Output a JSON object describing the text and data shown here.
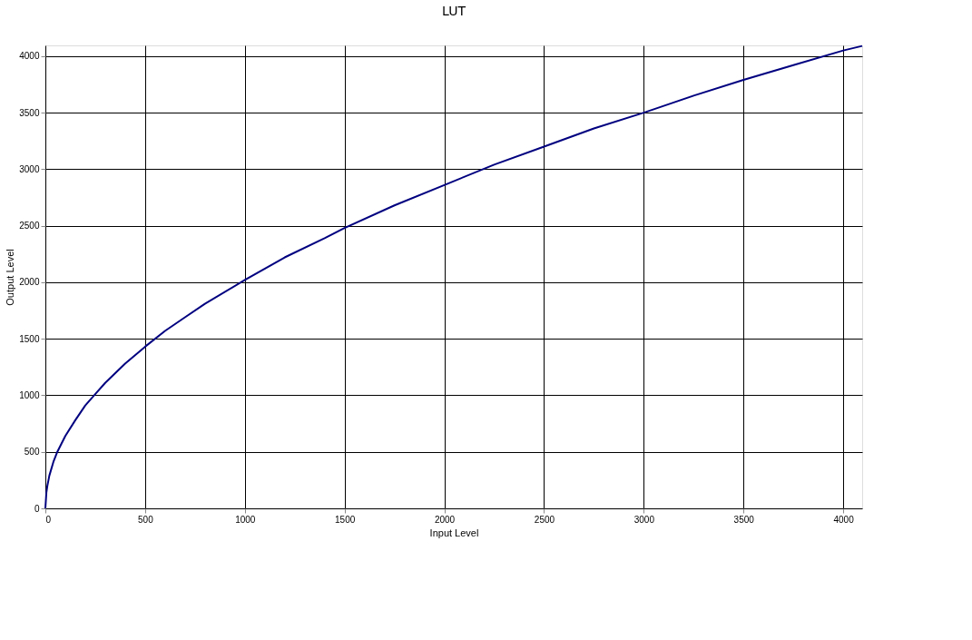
{
  "chart_data": {
    "type": "line",
    "title": "LUT",
    "xlabel": "Input Level",
    "ylabel": "Output Level",
    "x": [
      0,
      5,
      10,
      20,
      40,
      60,
      80,
      100,
      150,
      200,
      250,
      300,
      400,
      500,
      600,
      700,
      800,
      1000,
      1200,
      1400,
      1500,
      1750,
      2000,
      2250,
      2500,
      2750,
      3000,
      3250,
      3500,
      3750,
      4000,
      4095
    ],
    "series": [
      {
        "color": "#000080",
        "values": [
          0,
          140,
          200,
          290,
          410,
          500,
          570,
          640,
          780,
          910,
          1010,
          1110,
          1280,
          1430,
          1570,
          1690,
          1810,
          2020,
          2220,
          2390,
          2480,
          2680,
          2860,
          3040,
          3200,
          3360,
          3500,
          3650,
          3790,
          3920,
          4050,
          4090
        ]
      }
    ],
    "xlim": [
      0,
      4095
    ],
    "ylim": [
      0,
      4095
    ],
    "xticks": [
      0,
      500,
      1000,
      1500,
      2000,
      2500,
      3000,
      3500,
      4000
    ],
    "yticks": [
      0,
      500,
      1000,
      1500,
      2000,
      2500,
      3000,
      3500,
      4000
    ],
    "grid": true,
    "marker": "none",
    "line_style": "solid"
  }
}
